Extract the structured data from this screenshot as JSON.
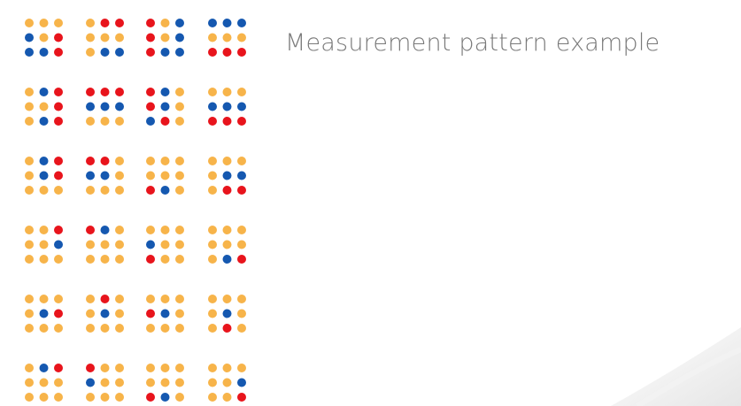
{
  "caption": "Measurement pattern example"
}
